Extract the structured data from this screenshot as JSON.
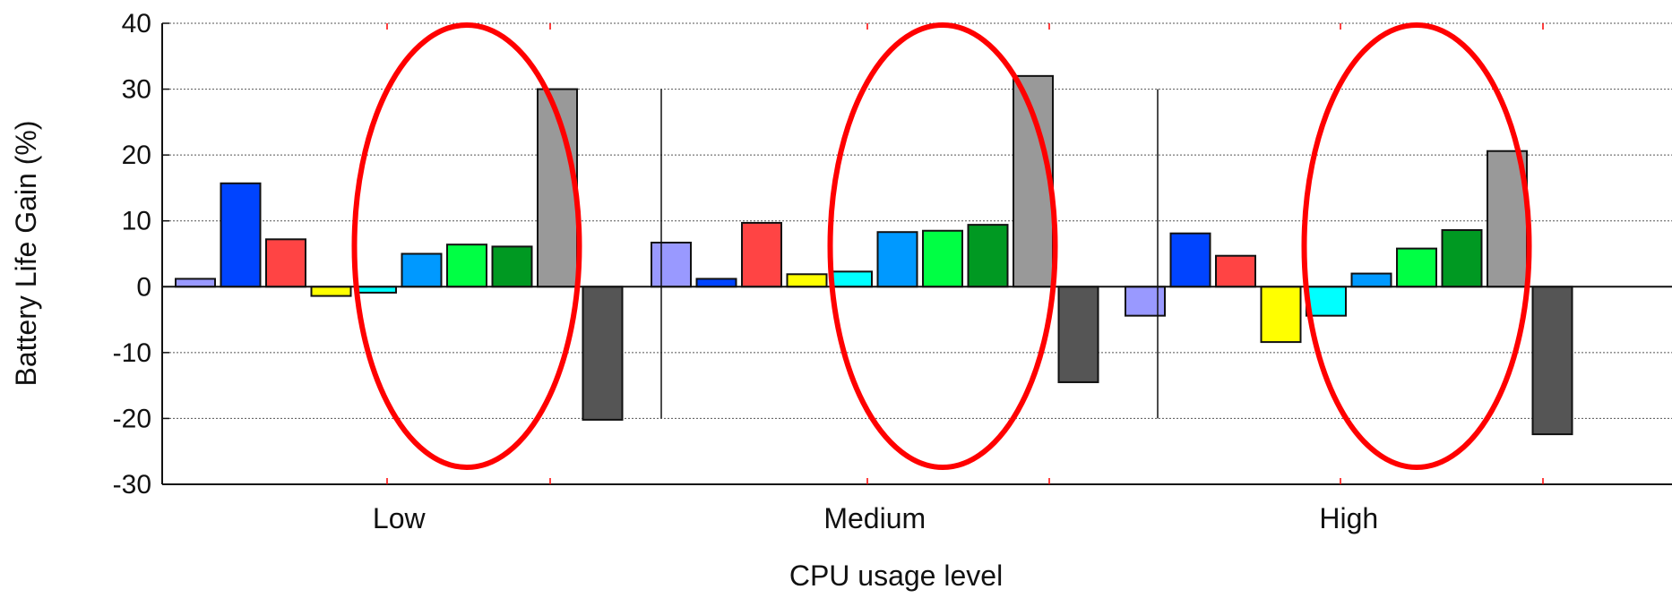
{
  "chart_data": {
    "type": "bar",
    "xlabel": "CPU usage level",
    "ylabel": "Battery Life Gain (%)",
    "ylim": [
      -30,
      40
    ],
    "yticks": [
      -30,
      -20,
      -10,
      0,
      10,
      20,
      30,
      40
    ],
    "grid": true,
    "categories": [
      "Low",
      "Medium",
      "High"
    ],
    "series": [
      {
        "color": "#9999ff",
        "values": [
          1.2,
          6.7,
          -4.4
        ]
      },
      {
        "color": "#0044ff",
        "values": [
          15.7,
          1.2,
          8.1
        ]
      },
      {
        "color": "#ff4444",
        "values": [
          7.2,
          9.7,
          4.7
        ]
      },
      {
        "color": "#ffff00",
        "values": [
          -1.4,
          1.9,
          -8.4
        ]
      },
      {
        "color": "#00ffff",
        "values": [
          -0.9,
          2.3,
          -4.4
        ]
      },
      {
        "color": "#0099ff",
        "values": [
          5.0,
          8.3,
          2.0
        ]
      },
      {
        "color": "#00ff44",
        "values": [
          6.4,
          8.5,
          5.8
        ]
      },
      {
        "color": "#009922",
        "values": [
          6.1,
          9.4,
          8.6
        ]
      },
      {
        "color": "#999999",
        "values": [
          30.0,
          32.0,
          20.6
        ]
      },
      {
        "color": "#555555",
        "values": [
          -20.2,
          -14.5,
          -22.4
        ]
      }
    ],
    "annotations": [
      {
        "type": "ellipse",
        "color": "#ff0000",
        "category": "Low",
        "series_range": [
          5,
          7
        ]
      },
      {
        "type": "ellipse",
        "color": "#ff0000",
        "category": "Medium",
        "series_range": [
          5,
          7
        ]
      },
      {
        "type": "ellipse",
        "color": "#ff0000",
        "category": "High",
        "series_range": [
          5,
          7
        ]
      }
    ]
  }
}
